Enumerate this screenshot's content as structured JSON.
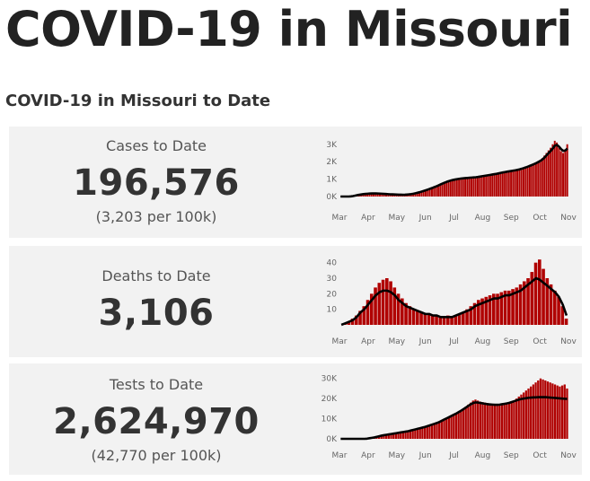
{
  "page": {
    "title": "COVID-19 in Missouri",
    "section_title": "COVID-19 in Missouri to Date"
  },
  "colors": {
    "bar": "#b00000",
    "line": "#000000",
    "card_bg": "#f2f2f2"
  },
  "cards": [
    {
      "label": "Cases to Date",
      "value": "196,576",
      "sub": "(3,203 per 100k)"
    },
    {
      "label": "Deaths to Date",
      "value": "3,106",
      "sub": ""
    },
    {
      "label": "Tests to Date",
      "value": "2,624,970",
      "sub": "(42,770 per 100k)"
    }
  ],
  "chart_data": [
    {
      "type": "bar",
      "title": "",
      "xlabel": "",
      "ylabel": "",
      "x_ticks": [
        "Mar",
        "Apr",
        "May",
        "Jun",
        "Jul",
        "Aug",
        "Sep",
        "Oct",
        "Nov"
      ],
      "y_ticks": [
        "0K",
        "1K",
        "2K",
        "3K"
      ],
      "ylim": [
        0,
        3400
      ],
      "series": [
        {
          "type": "bar",
          "values": [
            0,
            0,
            0,
            0,
            0,
            10,
            30,
            60,
            90,
            110,
            130,
            150,
            160,
            170,
            180,
            190,
            200,
            190,
            180,
            170,
            160,
            150,
            140,
            130,
            120,
            120,
            110,
            110,
            100,
            100,
            100,
            110,
            120,
            130,
            150,
            170,
            200,
            230,
            260,
            300,
            340,
            380,
            420,
            460,
            500,
            560,
            600,
            660,
            720,
            780,
            840,
            880,
            920,
            950,
            980,
            1000,
            1020,
            1040,
            1050,
            1060,
            1070,
            1080,
            1090,
            1100,
            1110,
            1120,
            1140,
            1160,
            1180,
            1200,
            1220,
            1240,
            1260,
            1280,
            1300,
            1320,
            1350,
            1380,
            1400,
            1420,
            1440,
            1460,
            1480,
            1500,
            1520,
            1550,
            1580,
            1620,
            1660,
            1700,
            1750,
            1800,
            1850,
            1900,
            1960,
            2030,
            2100,
            2200,
            2350,
            2500,
            2650,
            2800,
            3000,
            3200,
            3100,
            2800,
            2600,
            2500,
            2700,
            3000
          ]
        },
        {
          "type": "line",
          "values": [
            0,
            0,
            0,
            0,
            0,
            8,
            25,
            50,
            80,
            100,
            120,
            140,
            150,
            160,
            170,
            175,
            180,
            178,
            174,
            168,
            160,
            152,
            144,
            136,
            128,
            124,
            118,
            114,
            108,
            104,
            102,
            106,
            114,
            124,
            140,
            160,
            186,
            216,
            248,
            284,
            322,
            362,
            402,
            444,
            488,
            536,
            584,
            636,
            690,
            744,
            796,
            842,
            884,
            920,
            950,
            976,
            998,
            1018,
            1034,
            1046,
            1058,
            1068,
            1078,
            1088,
            1098,
            1108,
            1124,
            1144,
            1164,
            1184,
            1204,
            1224,
            1244,
            1264,
            1284,
            1304,
            1330,
            1358,
            1382,
            1404,
            1426,
            1446,
            1466,
            1486,
            1506,
            1530,
            1560,
            1594,
            1632,
            1672,
            1716,
            1764,
            1814,
            1864,
            1918,
            1980,
            2046,
            2126,
            2240,
            2372,
            2500,
            2620,
            2760,
            2920,
            2960,
            2860,
            2720,
            2620,
            2640,
            2760
          ]
        }
      ]
    },
    {
      "type": "bar",
      "title": "",
      "xlabel": "",
      "ylabel": "",
      "x_ticks": [
        "Mar",
        "Apr",
        "May",
        "Jun",
        "Jul",
        "Aug",
        "Sep",
        "Oct",
        "Nov"
      ],
      "y_ticks": [
        "10",
        "20",
        "30",
        "40"
      ],
      "ylim": [
        0,
        45
      ],
      "series": [
        {
          "type": "bar",
          "values": [
            0,
            1,
            2,
            4,
            6,
            9,
            12,
            16,
            20,
            24,
            27,
            29,
            30,
            28,
            24,
            20,
            17,
            14,
            12,
            10,
            9,
            8,
            7,
            7,
            6,
            6,
            5,
            5,
            6,
            5,
            6,
            7,
            8,
            10,
            12,
            14,
            16,
            17,
            18,
            19,
            20,
            20,
            21,
            22,
            22,
            23,
            24,
            26,
            28,
            30,
            34,
            40,
            42,
            36,
            30,
            26,
            22,
            18,
            12,
            4
          ]
        },
        {
          "type": "line",
          "values": [
            0,
            1,
            2,
            3,
            5,
            8,
            10,
            13,
            16,
            19,
            21,
            22,
            22,
            21,
            19,
            16,
            14,
            12,
            11,
            10,
            9,
            8,
            7,
            7,
            6,
            6,
            5,
            5,
            5,
            5,
            6,
            7,
            8,
            9,
            10,
            12,
            13,
            14,
            15,
            16,
            17,
            17,
            18,
            19,
            19,
            20,
            21,
            22,
            24,
            26,
            28,
            30,
            29,
            27,
            25,
            23,
            21,
            18,
            13,
            6
          ]
        }
      ]
    },
    {
      "type": "bar",
      "title": "",
      "xlabel": "",
      "ylabel": "",
      "x_ticks": [
        "Mar",
        "Apr",
        "May",
        "Jun",
        "Jul",
        "Aug",
        "Sep",
        "Oct",
        "Nov"
      ],
      "y_ticks": [
        "0K",
        "10K",
        "20K",
        "30K"
      ],
      "ylim": [
        0,
        33000
      ],
      "series": [
        {
          "type": "bar",
          "values": [
            0,
            0,
            0,
            0,
            0,
            0,
            0,
            0,
            0,
            0,
            0,
            200,
            400,
            600,
            900,
            1200,
            1500,
            1800,
            2000,
            2200,
            2400,
            2600,
            2800,
            3000,
            3200,
            3400,
            3600,
            3800,
            4000,
            4300,
            4600,
            4900,
            5200,
            5500,
            5800,
            6100,
            6500,
            6900,
            7300,
            7700,
            8100,
            8600,
            9200,
            9800,
            10500,
            11000,
            11500,
            12000,
            12500,
            13000,
            14000,
            15000,
            16000,
            17000,
            18000,
            19000,
            19500,
            19000,
            18500,
            18200,
            18000,
            17800,
            17600,
            17400,
            17200,
            17000,
            17200,
            17400,
            17600,
            17800,
            18000,
            18500,
            19000,
            20000,
            21000,
            22000,
            23000,
            24000,
            25000,
            26000,
            27000,
            28000,
            29000,
            30000,
            29500,
            29000,
            28500,
            28000,
            27500,
            27000,
            26500,
            26000,
            26500,
            27000,
            25000
          ]
        },
        {
          "type": "line",
          "values": [
            0,
            0,
            0,
            0,
            0,
            0,
            0,
            0,
            0,
            0,
            0,
            100,
            300,
            500,
            700,
            1000,
            1300,
            1600,
            1800,
            2000,
            2200,
            2400,
            2600,
            2800,
            3000,
            3200,
            3400,
            3600,
            3800,
            4100,
            4400,
            4700,
            5000,
            5300,
            5600,
            5900,
            6300,
            6700,
            7100,
            7500,
            7900,
            8400,
            9000,
            9600,
            10200,
            10800,
            11400,
            12000,
            12600,
            13300,
            14000,
            14800,
            15600,
            16400,
            17200,
            17800,
            18100,
            18000,
            17800,
            17600,
            17400,
            17200,
            17100,
            17000,
            16900,
            16900,
            17000,
            17200,
            17400,
            17600,
            17900,
            18300,
            18700,
            19100,
            19500,
            19800,
            20000,
            20200,
            20400,
            20500,
            20600,
            20600,
            20700,
            20700,
            20700,
            20700,
            20600,
            20500,
            20400,
            20300,
            20200,
            20100,
            20000,
            19900,
            19800
          ]
        }
      ]
    }
  ]
}
